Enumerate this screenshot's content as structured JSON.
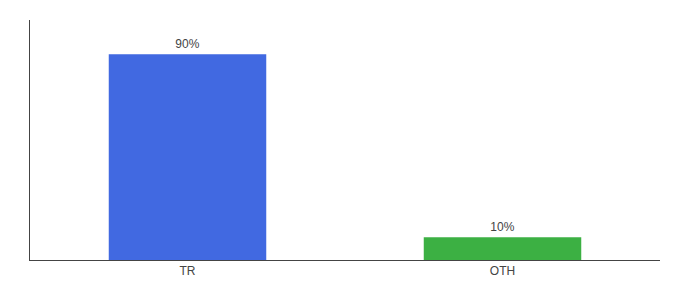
{
  "chart_data": {
    "type": "bar",
    "categories": [
      "TR",
      "OTH"
    ],
    "values": [
      90,
      10
    ],
    "value_labels": [
      "90%",
      "10%"
    ],
    "colors": [
      "#4169e1",
      "#3cb043"
    ],
    "ylim": [
      0,
      105
    ],
    "tick_labels": "x",
    "grid": false,
    "data_labels": true
  }
}
